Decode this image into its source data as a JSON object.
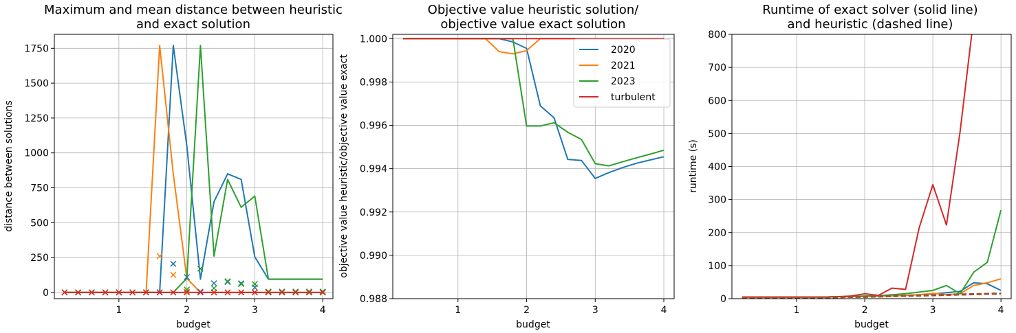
{
  "colors": {
    "2020": "#1f77b4",
    "2021": "#ff7f0e",
    "2023": "#2ca02c",
    "turbulent": "#d62728",
    "mix": "#a0522d"
  },
  "chart_data": [
    {
      "type": "line",
      "title_lines": [
        "Maximum and mean distance between heuristic",
        "and exact solution"
      ],
      "xlabel": "budget",
      "ylabel": "distance between solutions",
      "xlim": [
        0.05,
        4.15
      ],
      "ylim": [
        -45,
        1850
      ],
      "xticks": [
        1,
        2,
        3,
        4
      ],
      "xtick_labels": [
        "1",
        "2",
        "3",
        "4"
      ],
      "yticks": [
        0,
        250,
        500,
        750,
        1000,
        1250,
        1500,
        1750
      ],
      "ytick_labels": [
        "0",
        "250",
        "500",
        "750",
        "1000",
        "1250",
        "1500",
        "1750"
      ],
      "grid": true,
      "x": [
        0.2,
        0.4,
        0.6,
        0.8,
        1.0,
        1.2,
        1.4,
        1.6,
        1.8,
        2.0,
        2.2,
        2.4,
        2.6,
        2.8,
        3.0,
        3.2,
        3.4,
        3.6,
        3.8,
        4.0
      ],
      "series": [
        {
          "name": "2020",
          "color_key": "2020",
          "kind": "line",
          "values": [
            0,
            0,
            0,
            0,
            0,
            0,
            0,
            0,
            1770,
            1050,
            95,
            650,
            850,
            810,
            255,
            95,
            95,
            95,
            95,
            95
          ]
        },
        {
          "name": "2021",
          "color_key": "2021",
          "kind": "line",
          "values": [
            0,
            0,
            0,
            0,
            0,
            0,
            0,
            1770,
            850,
            100,
            0,
            0,
            0,
            0,
            0,
            0,
            0,
            0,
            0,
            0
          ]
        },
        {
          "name": "2023",
          "color_key": "2023",
          "kind": "line",
          "values": [
            0,
            0,
            0,
            0,
            0,
            0,
            0,
            0,
            0,
            100,
            1770,
            260,
            810,
            610,
            690,
            95,
            95,
            95,
            95,
            95
          ]
        },
        {
          "name": "turbulent",
          "color_key": "turbulent",
          "kind": "line",
          "values": [
            0,
            0,
            0,
            0,
            0,
            0,
            0,
            0,
            0,
            0,
            0,
            0,
            0,
            0,
            0,
            0,
            0,
            0,
            0,
            0
          ]
        },
        {
          "name": "2020",
          "color_key": "2020",
          "kind": "marker",
          "values": [
            0,
            0,
            0,
            0,
            0,
            0,
            0,
            0,
            205,
            110,
            5,
            65,
            75,
            65,
            35,
            5,
            5,
            5,
            5,
            5
          ]
        },
        {
          "name": "2021",
          "color_key": "2021",
          "kind": "marker",
          "values": [
            0,
            0,
            0,
            0,
            0,
            0,
            0,
            260,
            125,
            5,
            0,
            0,
            0,
            0,
            0,
            0,
            0,
            0,
            0,
            0
          ]
        },
        {
          "name": "2023",
          "color_key": "2023",
          "kind": "marker",
          "values": [
            0,
            0,
            0,
            0,
            0,
            0,
            0,
            0,
            0,
            20,
            170,
            30,
            80,
            60,
            60,
            5,
            5,
            5,
            5,
            5
          ]
        },
        {
          "name": "turbulent",
          "color_key": "turbulent",
          "kind": "marker",
          "values": [
            0,
            0,
            0,
            0,
            0,
            0,
            0,
            0,
            0,
            0,
            0,
            0,
            0,
            0,
            0,
            0,
            0,
            0,
            0,
            0
          ]
        }
      ]
    },
    {
      "type": "line",
      "title_lines": [
        "Objective value heuristic solution/",
        "objective value exact solution"
      ],
      "xlabel": "budget",
      "ylabel": "objective value heuristic/objective value exact",
      "xlim": [
        0.05,
        4.15
      ],
      "ylim": [
        0.988,
        1.0002
      ],
      "xticks": [
        1,
        2,
        3,
        4
      ],
      "xtick_labels": [
        "1",
        "2",
        "3",
        "4"
      ],
      "yticks": [
        0.988,
        0.99,
        0.992,
        0.994,
        0.996,
        0.998,
        1.0
      ],
      "ytick_labels": [
        "0.988",
        "0.990",
        "0.992",
        "0.994",
        "0.996",
        "0.998",
        "1.000"
      ],
      "grid": true,
      "legend": {
        "placement": "top-right",
        "entries": [
          "2020",
          "2021",
          "2023",
          "turbulent"
        ]
      },
      "x": [
        0.2,
        0.4,
        0.6,
        0.8,
        1.0,
        1.2,
        1.4,
        1.6,
        1.8,
        2.0,
        2.2,
        2.4,
        2.6,
        2.8,
        3.0,
        3.2,
        3.4,
        3.6,
        3.8,
        4.0
      ],
      "series": [
        {
          "name": "2020",
          "color_key": "2020",
          "kind": "line",
          "values": [
            1.0,
            1.0,
            1.0,
            1.0,
            1.0,
            1.0,
            1.0,
            1.0,
            0.99985,
            0.99955,
            0.9969,
            0.99635,
            0.99443,
            0.99438,
            0.99355,
            0.99382,
            0.99405,
            0.99425,
            0.9944,
            0.99455
          ]
        },
        {
          "name": "2021",
          "color_key": "2021",
          "kind": "line",
          "values": [
            1.0,
            1.0,
            1.0,
            1.0,
            1.0,
            1.0,
            1.0,
            0.9994,
            0.9993,
            0.99945,
            1.0,
            1.0,
            1.0,
            1.0,
            1.0,
            1.0,
            1.0,
            1.0,
            1.0,
            1.0
          ]
        },
        {
          "name": "2023",
          "color_key": "2023",
          "kind": "line",
          "values": [
            1.0,
            1.0,
            1.0,
            1.0,
            1.0,
            1.0,
            1.0,
            1.0,
            1.0,
            0.99597,
            0.99597,
            0.99612,
            0.99568,
            0.99535,
            0.99423,
            0.99413,
            0.99432,
            0.9945,
            0.99467,
            0.99485
          ]
        },
        {
          "name": "turbulent",
          "color_key": "turbulent",
          "kind": "line",
          "values": [
            1.0,
            1.0,
            1.0,
            1.0,
            1.0,
            1.0,
            1.0,
            1.0,
            1.0,
            1.0,
            1.0,
            1.0,
            1.0,
            1.0,
            1.0,
            1.0,
            1.0,
            1.0,
            1.0,
            1.0
          ]
        }
      ]
    },
    {
      "type": "line",
      "title_lines": [
        "Runtime of exact solver (solid line)",
        "and heuristic (dashed line)"
      ],
      "xlabel": "budget",
      "ylabel": "runtime (s)",
      "xlim": [
        0.05,
        4.15
      ],
      "ylim": [
        0,
        800
      ],
      "xticks": [
        1,
        2,
        3,
        4
      ],
      "xtick_labels": [
        "1",
        "2",
        "3",
        "4"
      ],
      "yticks": [
        0,
        100,
        200,
        300,
        400,
        500,
        600,
        700,
        800
      ],
      "ytick_labels": [
        "0",
        "100",
        "200",
        "300",
        "400",
        "500",
        "600",
        "700",
        "800"
      ],
      "grid": true,
      "x": [
        0.2,
        0.4,
        0.6,
        0.8,
        1.0,
        1.2,
        1.4,
        1.6,
        1.8,
        2.0,
        2.2,
        2.4,
        2.6,
        2.8,
        3.0,
        3.2,
        3.4,
        3.6,
        3.8,
        4.0
      ],
      "series": [
        {
          "name": "2020",
          "color_key": "2020",
          "kind": "line",
          "values": [
            5,
            5,
            5,
            5,
            5,
            5,
            5,
            6,
            6,
            7,
            8,
            9,
            10,
            12,
            14,
            18,
            22,
            48,
            45,
            25
          ]
        },
        {
          "name": "2021",
          "color_key": "2021",
          "kind": "line",
          "values": [
            5,
            5,
            5,
            5,
            5,
            5,
            5,
            6,
            6,
            7,
            8,
            9,
            10,
            12,
            16,
            12,
            15,
            40,
            48,
            60
          ]
        },
        {
          "name": "2023",
          "color_key": "2023",
          "kind": "line",
          "values": [
            5,
            5,
            5,
            5,
            5,
            5,
            5,
            6,
            7,
            8,
            9,
            12,
            15,
            20,
            25,
            40,
            15,
            80,
            110,
            268
          ]
        },
        {
          "name": "turbulent",
          "color_key": "turbulent",
          "kind": "line",
          "values": [
            5,
            5,
            5,
            5,
            5,
            5,
            5,
            6,
            8,
            15,
            10,
            32,
            28,
            215,
            345,
            223,
            505,
            850,
            850,
            850
          ]
        },
        {
          "name": "2020",
          "color_key": "mix",
          "kind": "dashed",
          "values": [
            2,
            2,
            2,
            2,
            3,
            3,
            4,
            4,
            5,
            5,
            6,
            7,
            8,
            9,
            10,
            11,
            12,
            13,
            14,
            15
          ]
        },
        {
          "name": "2021",
          "color_key": "mix",
          "kind": "dashed",
          "values": [
            2,
            2,
            2,
            2,
            3,
            3,
            4,
            4,
            5,
            5,
            6,
            7,
            8,
            9,
            10,
            11,
            12,
            13,
            14,
            15
          ]
        },
        {
          "name": "2023",
          "color_key": "mix",
          "kind": "dashed",
          "values": [
            2,
            2,
            2,
            3,
            3,
            4,
            4,
            5,
            5,
            6,
            7,
            8,
            9,
            10,
            11,
            12,
            13,
            14,
            15,
            16
          ]
        },
        {
          "name": "turbulent",
          "color_key": "mix",
          "kind": "dashed",
          "values": [
            2,
            2,
            2,
            3,
            3,
            4,
            4,
            5,
            5,
            6,
            7,
            8,
            9,
            10,
            11,
            12,
            13,
            14,
            15,
            16
          ]
        }
      ]
    }
  ]
}
